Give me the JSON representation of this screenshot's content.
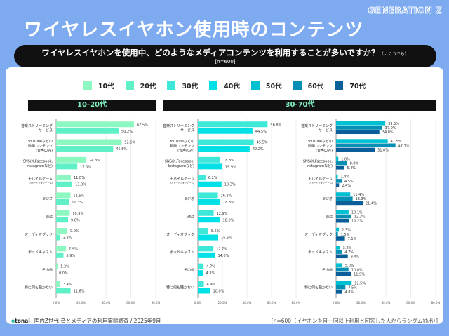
{
  "brand": "GENERATION Z",
  "title": "ワイヤレスイヤホン使用時のコンテンツ",
  "question": {
    "text": "ワイヤレスイヤホンを使用中、どのようなメディアコンテンツを利用することが多いですか？",
    "suffix": "（いくつでも）",
    "n": "[n=600]"
  },
  "legend": [
    {
      "label": "10代",
      "color": "#8cf7c0"
    },
    {
      "label": "20代",
      "color": "#5ff0c8"
    },
    {
      "label": "30代",
      "color": "#3de8d8"
    },
    {
      "label": "40代",
      "color": "#00e0e6"
    },
    {
      "label": "50代",
      "color": "#00c0d2"
    },
    {
      "label": "60代",
      "color": "#0890b4"
    },
    {
      "label": "70代",
      "color": "#0a5f9a"
    }
  ],
  "panels": [
    {
      "title": "10-20代"
    },
    {
      "title": "30-70代"
    }
  ],
  "chart_data": [
    {
      "type": "bar",
      "orientation": "horizontal",
      "xlim": [
        0,
        80
      ],
      "ticks": [
        "0.0%",
        "20.0%",
        "40.0%",
        "60.0%",
        "80.0%"
      ],
      "categories": [
        "音楽ストリーミング\nサービス",
        "YouTubeなどの\n動画コンテンツ\n(音声のみ)",
        "SNS(X,Facebook,\nInstagramなど)",
        "モバイルゲーム\n(スマートフォンゲーム)",
        "ラジオ",
        "通話",
        "オーディオブック",
        "ポッドキャスト",
        "その他",
        "特に何も聴かない"
      ],
      "series": [
        {
          "name": "10代",
          "color": "#8cf7c0",
          "values": [
            62.5,
            52.6,
            24.3,
            11.8,
            11.5,
            10.9,
            9.0,
            7.9,
            1.2,
            3.4
          ]
        },
        {
          "name": "20代",
          "color": "#5ff0c8",
          "values": [
            50.2,
            45.8,
            17.0,
            13.0,
            10.3,
            9.6,
            3.3,
            5.9,
            0.0,
            11.6
          ]
        }
      ]
    },
    {
      "type": "bar",
      "orientation": "horizontal",
      "xlim": [
        0,
        80
      ],
      "ticks": [
        "0.0%",
        "20.0%",
        "40.0%",
        "60.0%",
        "80.0%"
      ],
      "categories": [
        "音楽ストリーミング\nサービス",
        "YouTubeなどの\n動画コンテンツ\n(音声のみ)",
        "SNS(X,Facebook,\nInstagramなど)",
        "モバイルゲーム\n(スマートフォンゲーム)",
        "ラジオ",
        "通話",
        "オーディオブック",
        "ポッドキャスト",
        "その他",
        "特に何も聴かない"
      ],
      "series": [
        {
          "name": "30代",
          "color": "#3de8d8",
          "values": [
            56.8,
            45.5,
            18.3,
            6.2,
            16.3,
            12.9,
            8.5,
            12.7,
            4.7,
            4.9
          ]
        },
        {
          "name": "40代",
          "color": "#00e0e6",
          "values": [
            44.5,
            42.2,
            19.9,
            19.3,
            18.3,
            18.0,
            16.6,
            14.0,
            4.3,
            10.0
          ]
        }
      ]
    },
    {
      "type": "bar",
      "orientation": "horizontal",
      "xlim": [
        0,
        80
      ],
      "ticks": [
        "0.0%",
        "20.0%",
        "40.0%",
        "60.0%",
        "80.0%"
      ],
      "categories": [
        "音楽ストリーミング\nサービス",
        "YouTubeなどの\n動画コンテンツ\n(音声のみ)",
        "SNS(X,Facebook,\nInstagramなど)",
        "モバイルゲーム\n(スマートフォンゲーム)",
        "ラジオ",
        "通話",
        "オーディオブック",
        "ポッドキャスト",
        "その他",
        "特に何も聴かない"
      ],
      "series": [
        {
          "name": "50代",
          "color": "#00c0d2",
          "values": [
            39.5,
            41.5,
            1.8,
            1.4,
            11.4,
            10.1,
            2.3,
            3.2,
            5.0,
            12.5
          ]
        },
        {
          "name": "60代",
          "color": "#0890b4",
          "values": [
            37.0,
            47.7,
            8.8,
            4.5,
            13.3,
            12.3,
            1.5,
            4.7,
            10.0,
            7.5
          ]
        },
        {
          "name": "70代",
          "color": "#0a5f9a",
          "values": [
            34.8,
            31.0,
            6.4,
            2.4,
            21.4,
            10.2,
            7.1,
            9.4,
            11.9,
            4.8
          ]
        }
      ]
    }
  ],
  "footer": {
    "logo_prefix": "o",
    "logo_rest": "tonal",
    "source": "国内Z世代 音とメディアの利用実態調査 / 2025年9月",
    "note": "[n=600（イヤホンを月一回以上利用と回答した人からランダム抽出）]"
  }
}
